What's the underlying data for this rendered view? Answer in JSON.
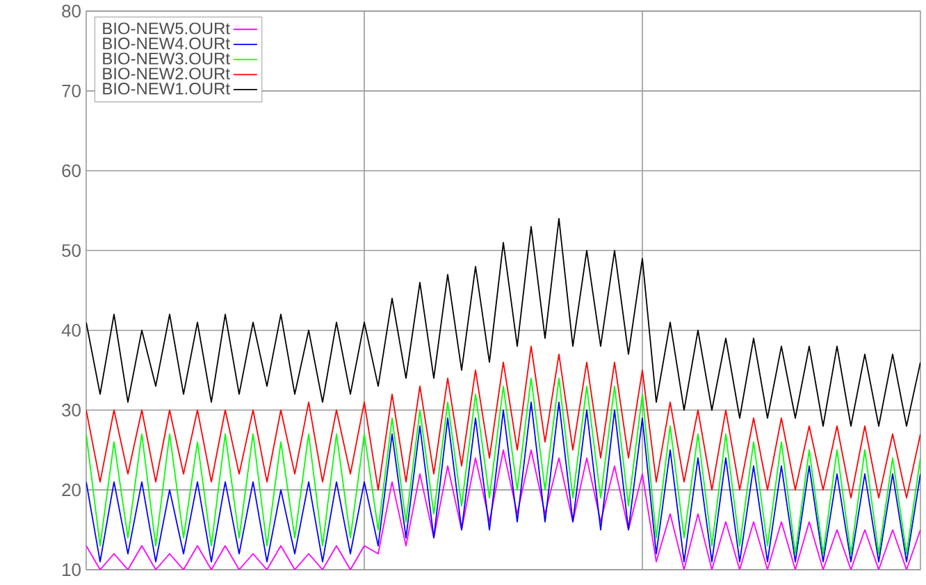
{
  "chart_data": {
    "type": "line",
    "categories": [
      null,
      null,
      null,
      null,
      null,
      null,
      null,
      null,
      null,
      null,
      null,
      null,
      null,
      null,
      null,
      null,
      null,
      null,
      null,
      null,
      null,
      null,
      null,
      null,
      null,
      null,
      null,
      null,
      null,
      null,
      null,
      null,
      null,
      null,
      null,
      null,
      null,
      null,
      null,
      null,
      null,
      null,
      null,
      null,
      null,
      null,
      null,
      null,
      null,
      null,
      null,
      null,
      null,
      null,
      null,
      null,
      null,
      null,
      null,
      null,
      null
    ],
    "ylim": [
      10,
      80
    ],
    "yticks": [
      10,
      20,
      30,
      40,
      50,
      60,
      70,
      80
    ],
    "tick_labels": "y",
    "grid": true,
    "legend": "top left",
    "marker": "none",
    "line_style": "solid",
    "series": [
      {
        "name": "BIO-NEW5.OURt",
        "color": "#ff00ff",
        "values": [
          13,
          10,
          12,
          10,
          13,
          10,
          12,
          10,
          13,
          10,
          13,
          10,
          12,
          10,
          13,
          10,
          12,
          10,
          13,
          10,
          13,
          12,
          21,
          13,
          22,
          14,
          23,
          15,
          24,
          16,
          25,
          17,
          25,
          17,
          24,
          16,
          24,
          16,
          23,
          15,
          22,
          11,
          17,
          10,
          17,
          10,
          16,
          10,
          16,
          10,
          16,
          10,
          16,
          10,
          15,
          10,
          15,
          10,
          15,
          10,
          15
        ]
      },
      {
        "name": "BIO-NEW4.OURt",
        "color": "#0000ff",
        "values": [
          21,
          11,
          21,
          12,
          21,
          11,
          20,
          12,
          21,
          11,
          21,
          12,
          21,
          11,
          20,
          12,
          21,
          11,
          21,
          12,
          21,
          13,
          27,
          14,
          28,
          14,
          29,
          15,
          29,
          15,
          30,
          16,
          31,
          16,
          31,
          16,
          30,
          15,
          30,
          15,
          29,
          12,
          25,
          11,
          24,
          11,
          24,
          11,
          23,
          11,
          23,
          11,
          23,
          11,
          22,
          11,
          22,
          11,
          22,
          11,
          22
        ]
      },
      {
        "name": "BIO-NEW3.OURt",
        "color": "#00ff00",
        "values": [
          27,
          13,
          26,
          14,
          27,
          13,
          27,
          14,
          26,
          13,
          27,
          14,
          27,
          13,
          26,
          14,
          27,
          13,
          27,
          14,
          27,
          15,
          29,
          16,
          30,
          17,
          31,
          18,
          32,
          19,
          33,
          20,
          34,
          20,
          34,
          19,
          33,
          19,
          33,
          18,
          32,
          14,
          28,
          14,
          27,
          13,
          27,
          13,
          26,
          13,
          26,
          12,
          25,
          12,
          25,
          12,
          25,
          12,
          24,
          12,
          24
        ]
      },
      {
        "name": "BIO-NEW2.OURt",
        "color": "#ff0000",
        "values": [
          30,
          21,
          30,
          22,
          30,
          21,
          30,
          22,
          30,
          21,
          30,
          22,
          30,
          21,
          30,
          22,
          31,
          21,
          30,
          22,
          31,
          20,
          32,
          21,
          33,
          22,
          34,
          23,
          35,
          24,
          36,
          25,
          38,
          26,
          37,
          25,
          36,
          24,
          36,
          24,
          35,
          21,
          31,
          21,
          30,
          20,
          30,
          20,
          29,
          20,
          29,
          20,
          28,
          20,
          28,
          19,
          28,
          19,
          27,
          19,
          27
        ]
      },
      {
        "name": "BIO-NEW1.OURt",
        "color": "#000000",
        "values": [
          41,
          32,
          42,
          31,
          40,
          33,
          42,
          32,
          41,
          31,
          42,
          32,
          41,
          33,
          42,
          32,
          40,
          31,
          41,
          32,
          41,
          33,
          44,
          34,
          46,
          34,
          47,
          35,
          48,
          36,
          51,
          38,
          53,
          39,
          54,
          38,
          50,
          38,
          50,
          37,
          49,
          31,
          41,
          30,
          40,
          30,
          39,
          29,
          39,
          29,
          38,
          29,
          38,
          28,
          38,
          28,
          37,
          28,
          37,
          28,
          36
        ]
      }
    ]
  }
}
